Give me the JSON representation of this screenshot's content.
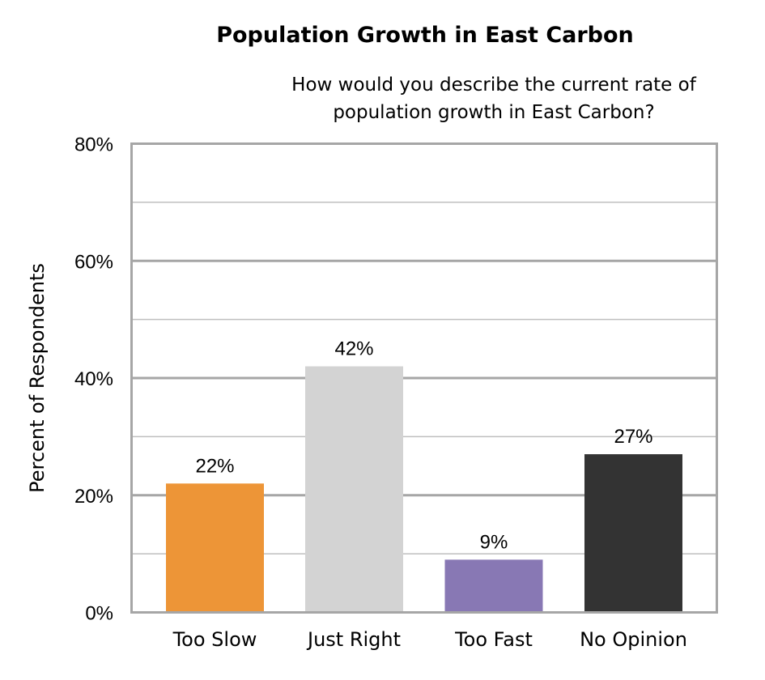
{
  "chart_data": {
    "type": "bar",
    "title": "Population Growth in East Carbon",
    "subtitle_lines": [
      "How would you describe the current rate of",
      "population growth in East Carbon?"
    ],
    "xlabel": "",
    "ylabel": "Percent of Respondents",
    "categories": [
      "Too Slow",
      "Just Right",
      "Too Fast",
      "No Opinion"
    ],
    "values": [
      22,
      42,
      9,
      27
    ],
    "data_labels": [
      "22%",
      "42%",
      "9%",
      "27%"
    ],
    "colors": [
      "#ED9537",
      "#D3D3D3",
      "#8878B4",
      "#333333"
    ],
    "ylim": [
      0,
      80
    ],
    "yticks": [
      0,
      20,
      40,
      60,
      80
    ],
    "ytick_labels": [
      "0%",
      "20%",
      "40%",
      "60%",
      "80%"
    ],
    "grid": true,
    "legend": "none"
  }
}
